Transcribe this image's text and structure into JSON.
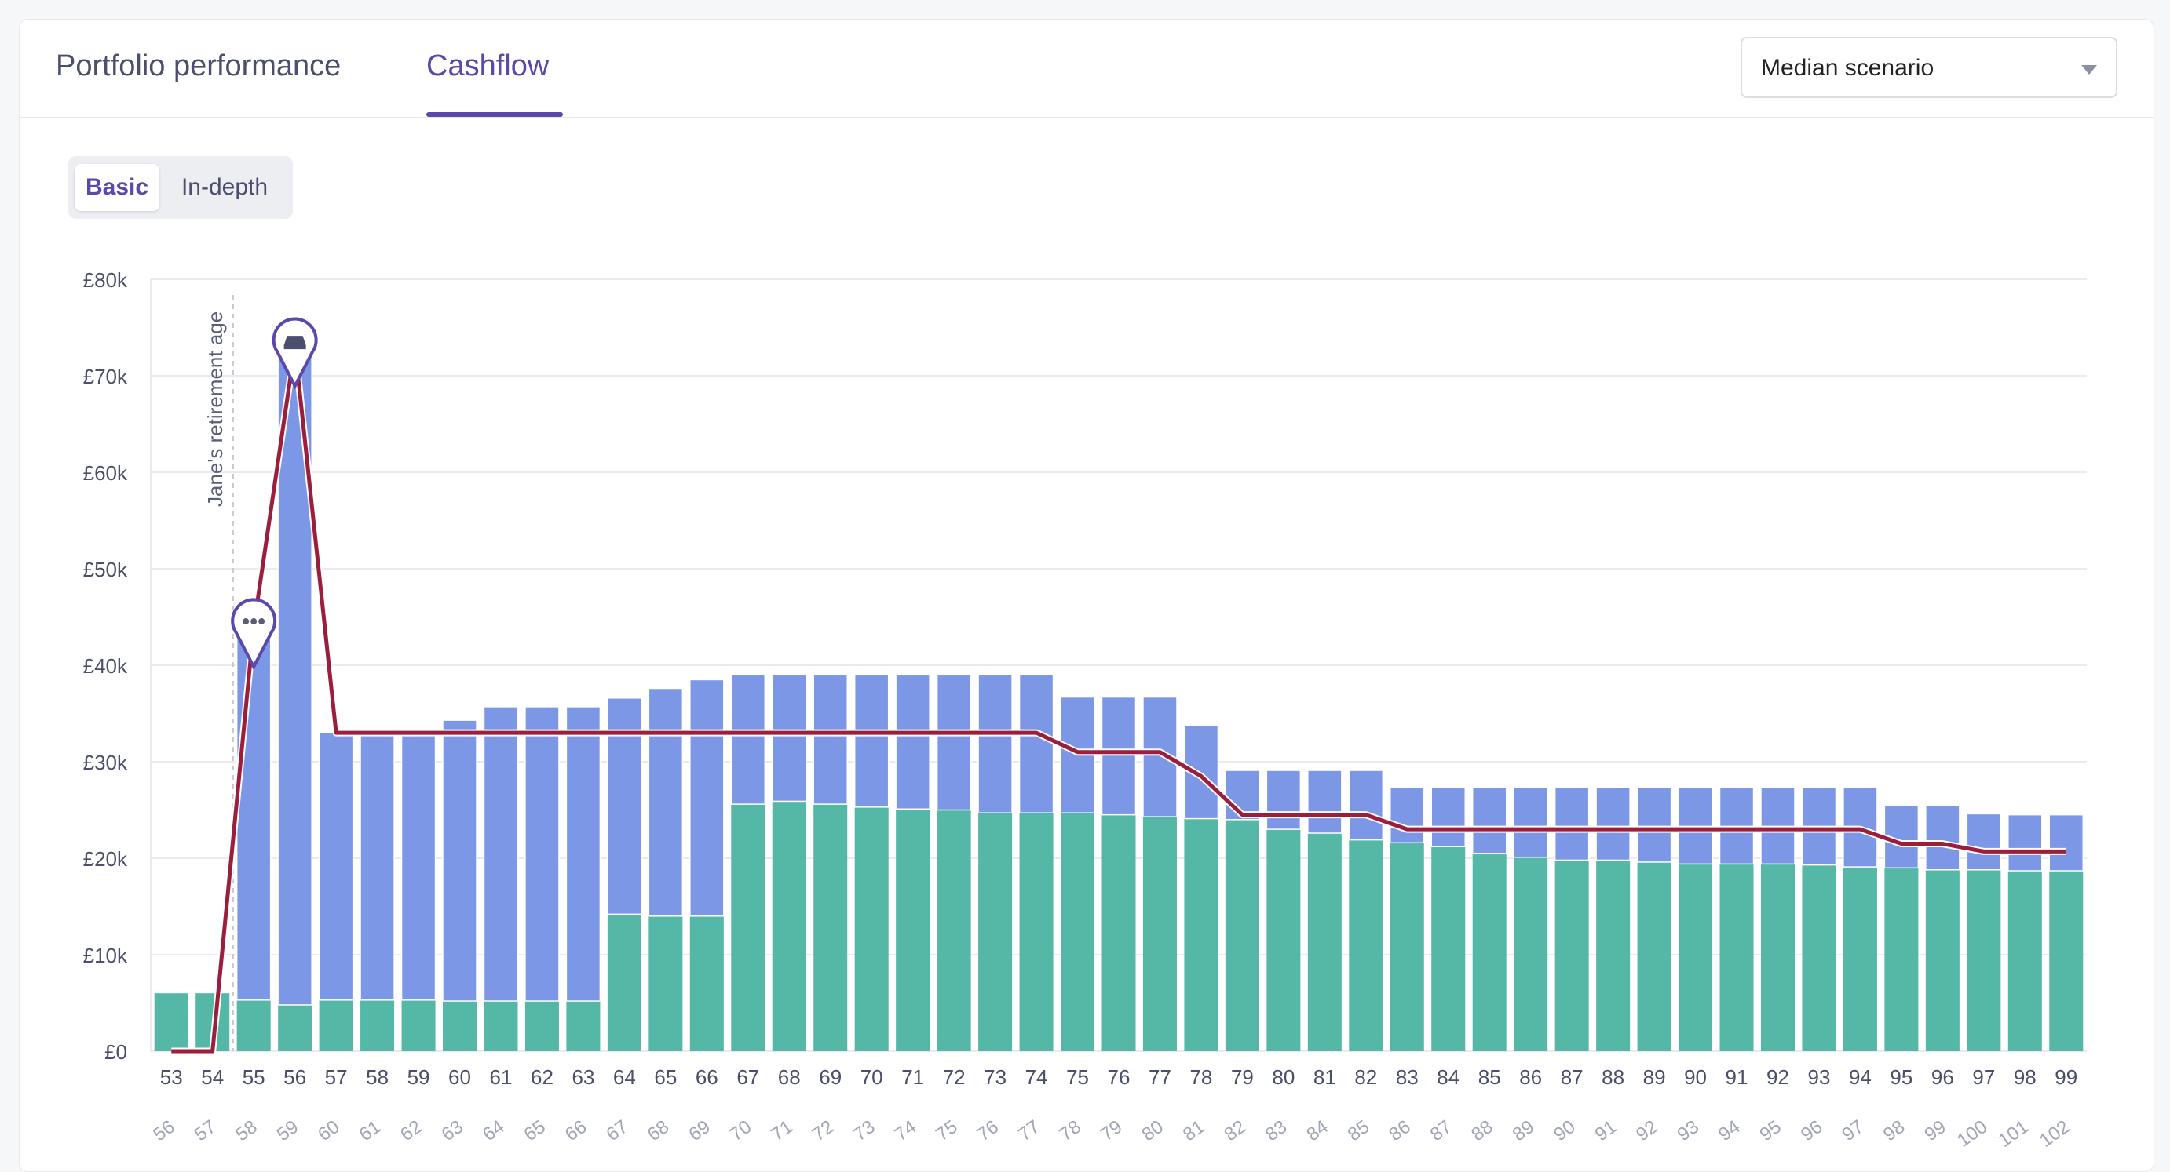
{
  "tabs": [
    {
      "label": "Portfolio performance",
      "active": false
    },
    {
      "label": "Cashflow",
      "active": true
    }
  ],
  "scenario_select": {
    "value": "Median scenario"
  },
  "view_toggle": {
    "basic": "Basic",
    "in_depth": "In-depth",
    "selected": "Basic"
  },
  "colors": {
    "accent": "#5c48a8",
    "income_blue": "#7b97e6",
    "income_green": "#55b8a6",
    "spending_line": "#9b1f3c",
    "grid": "#e3e4ea"
  },
  "chart_data": {
    "type": "bar",
    "stacked": true,
    "categories": [
      "53",
      "54",
      "55",
      "56",
      "57",
      "58",
      "59",
      "60",
      "61",
      "62",
      "63",
      "64",
      "65",
      "66",
      "67",
      "68",
      "69",
      "70",
      "71",
      "72",
      "73",
      "74",
      "75",
      "76",
      "77",
      "78",
      "79",
      "80",
      "81",
      "82",
      "83",
      "84",
      "85",
      "86",
      "87",
      "88",
      "89",
      "90",
      "91",
      "92",
      "93",
      "94",
      "95",
      "96",
      "97",
      "98",
      "99"
    ],
    "secondary_categories": [
      "56",
      "57",
      "58",
      "59",
      "60",
      "61",
      "62",
      "63",
      "64",
      "65",
      "66",
      "67",
      "68",
      "69",
      "70",
      "71",
      "72",
      "73",
      "74",
      "75",
      "76",
      "77",
      "78",
      "79",
      "80",
      "81",
      "82",
      "83",
      "84",
      "85",
      "86",
      "87",
      "88",
      "89",
      "90",
      "91",
      "92",
      "93",
      "94",
      "95",
      "96",
      "97",
      "98",
      "99",
      "100",
      "101",
      "102"
    ],
    "series": [
      {
        "color": "#55b8a6",
        "values": [
          6000,
          6000,
          5300,
          4800,
          5300,
          5300,
          5300,
          5200,
          5200,
          5200,
          5200,
          14200,
          14000,
          14000,
          25600,
          25900,
          25600,
          25300,
          25100,
          25000,
          24700,
          24700,
          24700,
          24500,
          24300,
          24100,
          24000,
          23000,
          22600,
          21900,
          21600,
          21200,
          20500,
          20100,
          19800,
          19800,
          19600,
          19400,
          19400,
          19400,
          19300,
          19100,
          19000,
          18800,
          18800,
          18700,
          18700
        ]
      },
      {
        "color": "#7b97e6",
        "values": [
          0,
          0,
          38600,
          68200,
          27700,
          27700,
          27700,
          29100,
          30500,
          30500,
          30500,
          22400,
          23600,
          24500,
          13400,
          13100,
          13400,
          13700,
          13900,
          14000,
          14300,
          14300,
          12000,
          12200,
          12400,
          9700,
          5100,
          6100,
          6500,
          7200,
          5700,
          6100,
          6800,
          7200,
          7500,
          7500,
          7700,
          7900,
          7900,
          7900,
          8000,
          8200,
          6500,
          6700,
          5800,
          5800,
          5800
        ]
      }
    ],
    "line": {
      "values": [
        0,
        0,
        44000,
        73000,
        33000,
        33000,
        33000,
        33000,
        33000,
        33000,
        33000,
        33000,
        33000,
        33000,
        33000,
        33000,
        33000,
        33000,
        33000,
        33000,
        33000,
        33000,
        31000,
        31000,
        31000,
        28500,
        24500,
        24500,
        24500,
        24500,
        23000,
        23000,
        23000,
        23000,
        23000,
        23000,
        23000,
        23000,
        23000,
        23000,
        23000,
        23000,
        21500,
        21500,
        20700,
        20700,
        20700
      ]
    },
    "y_ticks": [
      "£0",
      "£10k",
      "£20k",
      "£30k",
      "£40k",
      "£50k",
      "£60k",
      "£70k",
      "£80k"
    ],
    "ylim": [
      0,
      80000
    ],
    "grid": true,
    "annotation": {
      "text": "Jane's retirement age",
      "at_category": "55"
    },
    "markers": [
      {
        "at_category": "55",
        "icon": "more-dots-icon"
      },
      {
        "at_category": "56",
        "icon": "car-icon"
      }
    ]
  }
}
